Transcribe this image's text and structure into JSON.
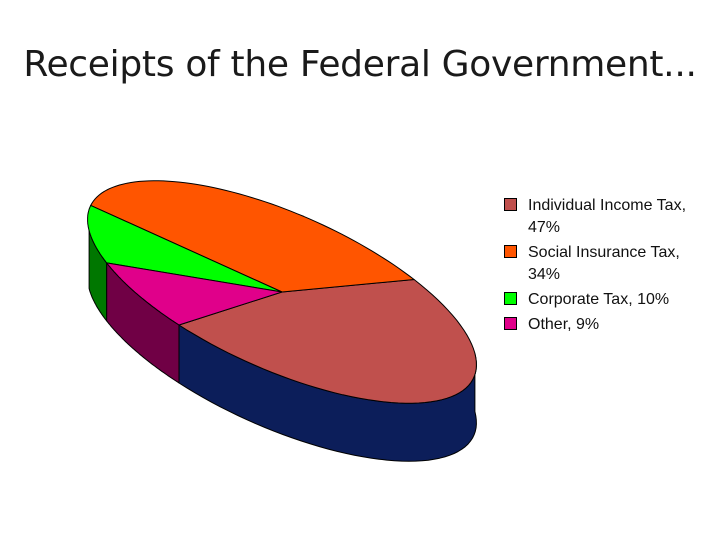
{
  "title": "Receipts of the Federal Government...",
  "chart_data": {
    "type": "pie",
    "style": "3d-tilted",
    "title": "Receipts of the Federal Government...",
    "slices": [
      {
        "label": "Individual Income Tax,  47%",
        "value": 47,
        "color": "#C0504D",
        "side_color": "#0C1E5A"
      },
      {
        "label": "Social Insurance Tax, 34%",
        "value": 34,
        "color": "#FF5500",
        "side_color": "#702000"
      },
      {
        "label": "Corporate Tax, 10%",
        "value": 10,
        "color": "#00FF00",
        "side_color": "#007700"
      },
      {
        "label": "Other, 9%",
        "value": 9,
        "color": "#E0008A",
        "side_color": "#700045"
      }
    ],
    "legend_position": "right"
  }
}
